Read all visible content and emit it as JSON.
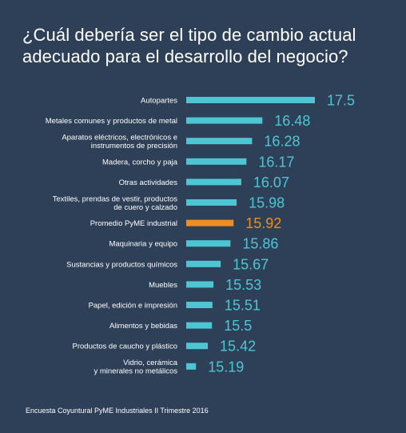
{
  "title": "¿Cuál debería ser el tipo de cambio actual adecuado para el desarrollo del negocio?",
  "footer": "Encuesta Coyuntural PyME Industriales II Trimestre 2016",
  "colors": {
    "background": "#2e4057",
    "bar": "#4dc6d4",
    "highlight": "#f28c1c",
    "label": "#ffffff",
    "value": "#4dc6d4"
  },
  "chart_data": {
    "type": "bar",
    "orientation": "horizontal",
    "categories": [
      "Autopartes",
      "Metales comunes y productos de metal",
      "Aparatos eléctricos, electrónicos e instrumentos de precisión",
      "Madera, corcho y paja",
      "Otras actividades",
      "Textiles, prendas de vestir, productos de cuero y calzado",
      "Promedio PyME industrial",
      "Maquinaria y equipo",
      "Sustancias y productos químicos",
      "Muebles",
      "Papel, edición e impresión",
      "Alimentos y bebidas",
      "Productos de caucho y plástico",
      "Vidrio, cerámica y minerales no metálicos"
    ],
    "category_lines": [
      [
        "Autopartes"
      ],
      [
        "Metales comunes y productos de metal"
      ],
      [
        "Aparatos eléctricos, electrónicos e",
        "instrumentos de precisión"
      ],
      [
        "Madera, corcho y paja"
      ],
      [
        "Otras actividades"
      ],
      [
        "Textiles, prendas de vestir, productos",
        "de cuero y calzado"
      ],
      [
        "Promedio PyME industrial"
      ],
      [
        "Maquinaria y equipo"
      ],
      [
        "Sustancias y productos químicos"
      ],
      [
        "Muebles"
      ],
      [
        "Papel, edición e impresión"
      ],
      [
        "Alimentos y bebidas"
      ],
      [
        "Productos de caucho y plástico"
      ],
      [
        "Vidrio, cerámica",
        "y minerales no metálicos"
      ]
    ],
    "values": [
      17.5,
      16.48,
      16.28,
      16.17,
      16.07,
      15.98,
      15.92,
      15.86,
      15.67,
      15.53,
      15.51,
      15.5,
      15.42,
      15.19
    ],
    "value_labels": [
      "17.5",
      "16.48",
      "16.28",
      "16.17",
      "16.07",
      "15.98",
      "15.92",
      "15.86",
      "15.67",
      "15.53",
      "15.51",
      "15.5",
      "15.42",
      "15.19"
    ],
    "highlight_category": "Promedio PyME industrial",
    "xlim": [
      15.0,
      17.5
    ],
    "grid": false,
    "legend": "none"
  }
}
